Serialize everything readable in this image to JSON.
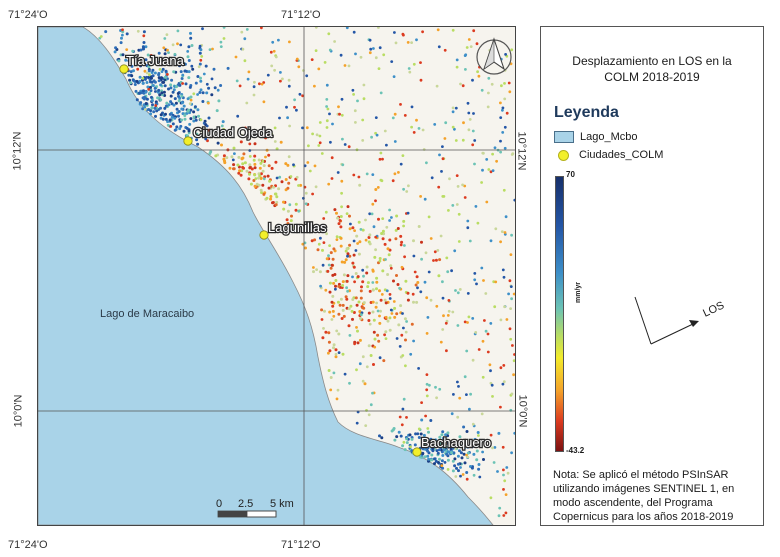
{
  "map": {
    "coords": {
      "top_left": "71°24'O",
      "top_mid": "71°12'O",
      "bottom_left": "71°24'O",
      "bottom_mid": "71°12'O",
      "left_upper": "10°12'N",
      "left_lower": "10°0'N",
      "right_upper": "10°12'N",
      "right_lower": "10°0'N"
    },
    "cities": [
      "Tía Juana",
      "Ciudad Ojeda",
      "Lagunillas",
      "Bachaquero"
    ],
    "lake_label": "Lago de Maracaibo",
    "scale": {
      "t0": "0",
      "t1": "2.5",
      "t2": "5 km"
    },
    "colors": {
      "lake": "#a9d3e8",
      "land": "#f6f4ee",
      "city_marker": "#f2ef2b",
      "grid": "#555555"
    }
  },
  "legend": {
    "title_line1": "Desplazamiento en LOS en la",
    "title_line2": "COLM 2018-2019",
    "heading": "Leyenda",
    "items": {
      "lake": "Lago_Mcbo",
      "cities": "Ciudades_COLM"
    },
    "ramp_max": "70",
    "ramp_min": "-43.2",
    "ramp_unit": "mm/yr",
    "los_label": "LOS",
    "note": "Nota: Se aplicó el método PSInSAR utilizando imágenes SENTINEL 1, en modo ascendente, del Programa Copernicus para los años 2018-2019"
  }
}
